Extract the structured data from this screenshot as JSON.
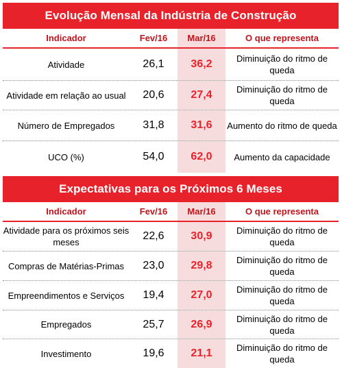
{
  "section1": {
    "title": "Evolução Mensal da Indústria de Construção",
    "headers": {
      "indicator": "Indicador",
      "prev": "Fev/16",
      "curr": "Mar/16",
      "meaning": "O que representa"
    },
    "rows": [
      {
        "indicator": "Atividade",
        "prev": "26,1",
        "curr": "36,2",
        "meaning": "Diminuição do ritmo de queda"
      },
      {
        "indicator": "Atividade em relação ao usual",
        "prev": "20,6",
        "curr": "27,4",
        "meaning": "Diminuição do ritmo de queda"
      },
      {
        "indicator": "Número de Empregados",
        "prev": "31,8",
        "curr": "31,6",
        "meaning": "Aumento do ritmo de queda"
      },
      {
        "indicator": "UCO (%)",
        "prev": "54,0",
        "curr": "62,0",
        "meaning": "Aumento da capacidade"
      }
    ]
  },
  "section2": {
    "title": "Expectativas para os Próximos 6 Meses",
    "headers": {
      "indicator": "Indicador",
      "prev": "Fev/16",
      "curr": "Mar/16",
      "meaning": "O que representa"
    },
    "rows": [
      {
        "indicator": "Atividade para os próximos seis meses",
        "prev": "22,6",
        "curr": "30,9",
        "meaning": "Diminuição do ritmo de queda"
      },
      {
        "indicator": "Compras de Matérias-Primas",
        "prev": "23,0",
        "curr": "29,8",
        "meaning": "Diminuição do ritmo de queda"
      },
      {
        "indicator": "Empreendimentos e Serviços",
        "prev": "19,4",
        "curr": "27,0",
        "meaning": "Diminuição do ritmo de queda"
      },
      {
        "indicator": "Empregados",
        "prev": "25,7",
        "curr": "26,9",
        "meaning": "Diminuição do ritmo de queda"
      },
      {
        "indicator": "Investimento",
        "prev": "19,6",
        "curr": "21,1",
        "meaning": "Diminuição do ritmo de queda"
      }
    ]
  },
  "colors": {
    "accent": "#e8222b",
    "header_text": "#c0131b",
    "highlight_column": "#f6dcdc"
  }
}
